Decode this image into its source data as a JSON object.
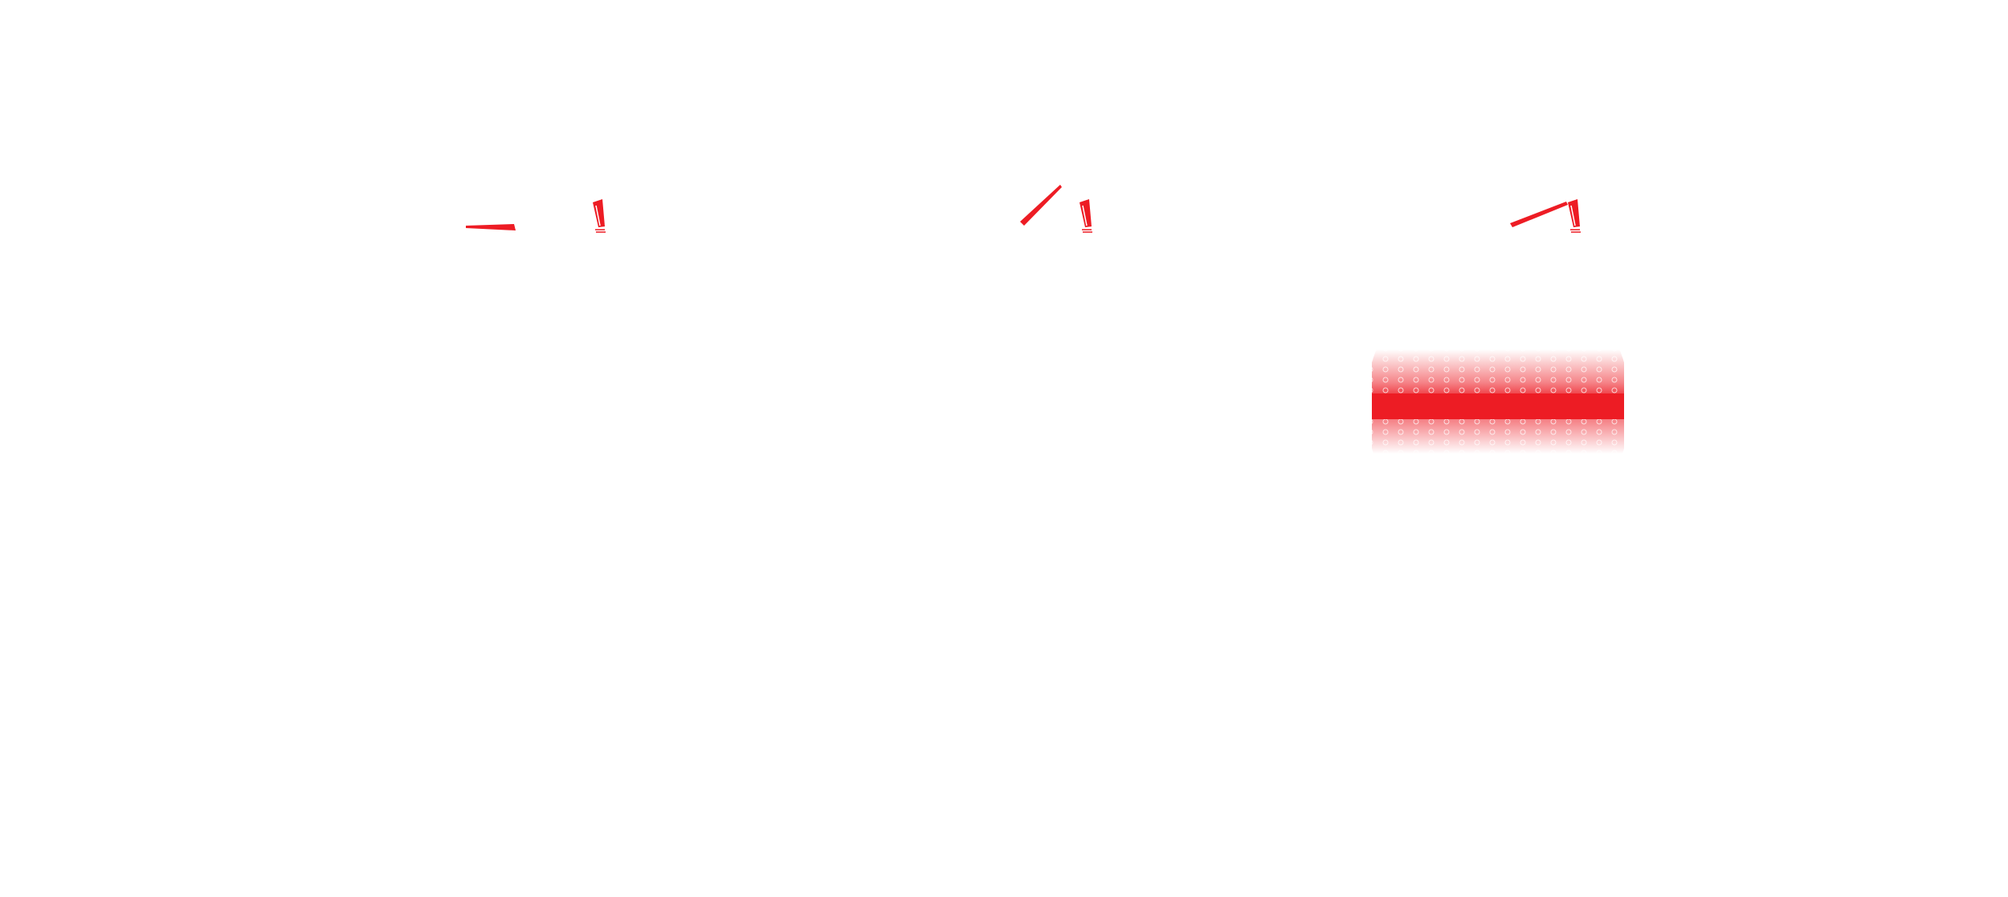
{
  "colors": {
    "accent": "#ED1C24",
    "background": "#FFFFFF"
  },
  "gauges": [
    {
      "icon": "needle-icon",
      "level": 0.0
    },
    {
      "icon": "needle-icon",
      "level": 0.5
    },
    {
      "icon": "needle-icon",
      "level": 0.25
    }
  ],
  "band": {
    "icon": "red-band-dotted-glow"
  }
}
